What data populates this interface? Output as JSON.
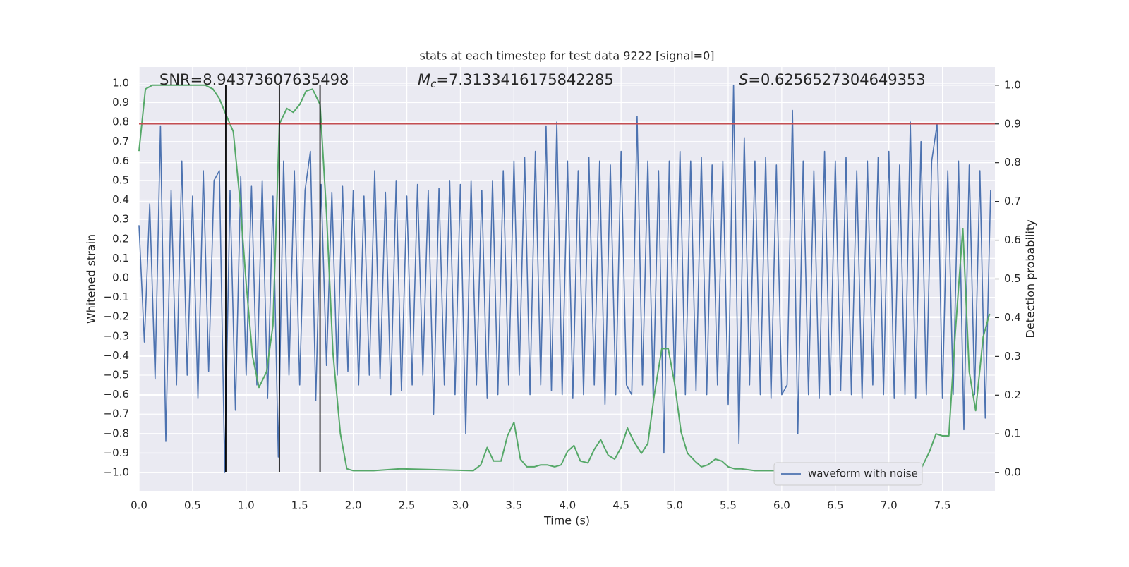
{
  "chart_data": {
    "type": "line",
    "title": "stats at each timestep for test data 9222 [signal=0]",
    "xlabel": "Time (s)",
    "ylabel": "Whitened strain",
    "y2label": "Detection probability",
    "grid": true,
    "legend": "lower right",
    "background": "#eaeaf2",
    "xlim": [
      0,
      7.99
    ],
    "xticks": [
      {
        "value": 0,
        "label": "0.0"
      },
      {
        "value": 0.5,
        "label": "0.5"
      },
      {
        "value": 1,
        "label": "1.0"
      },
      {
        "value": 1.5,
        "label": "1.5"
      },
      {
        "value": 2,
        "label": "2.0"
      },
      {
        "value": 2.5,
        "label": "2.5"
      },
      {
        "value": 3,
        "label": "3.0"
      },
      {
        "value": 3.5,
        "label": "3.5"
      },
      {
        "value": 4,
        "label": "4.0"
      },
      {
        "value": 4.5,
        "label": "4.5"
      },
      {
        "value": 5,
        "label": "5.0"
      },
      {
        "value": 5.5,
        "label": "5.5"
      },
      {
        "value": 6,
        "label": "6.0"
      },
      {
        "value": 6.5,
        "label": "6.5"
      },
      {
        "value": 7,
        "label": "7.0"
      },
      {
        "value": 7.5,
        "label": "7.5"
      }
    ],
    "ylim": [
      -1.094,
      1.083
    ],
    "yticks": [
      {
        "value": -1.0,
        "label": "−1.0"
      },
      {
        "value": -0.9,
        "label": "−0.9"
      },
      {
        "value": -0.8,
        "label": "−0.8"
      },
      {
        "value": -0.7,
        "label": "−0.7"
      },
      {
        "value": -0.6,
        "label": "−0.6"
      },
      {
        "value": -0.5,
        "label": "−0.5"
      },
      {
        "value": -0.4,
        "label": "−0.4"
      },
      {
        "value": -0.3,
        "label": "−0.3"
      },
      {
        "value": -0.2,
        "label": "−0.2"
      },
      {
        "value": -0.1,
        "label": "−0.1"
      },
      {
        "value": 0,
        "label": "0.0"
      },
      {
        "value": 0.1,
        "label": "0.1"
      },
      {
        "value": 0.2,
        "label": "0.2"
      },
      {
        "value": 0.3,
        "label": "0.3"
      },
      {
        "value": 0.4,
        "label": "0.4"
      },
      {
        "value": 0.5,
        "label": "0.5"
      },
      {
        "value": 0.6,
        "label": "0.6"
      },
      {
        "value": 0.7,
        "label": "0.7"
      },
      {
        "value": 0.8,
        "label": "0.8"
      },
      {
        "value": 0.9,
        "label": "0.9"
      },
      {
        "value": 1.0,
        "label": "1.0"
      }
    ],
    "y2lim": [
      -0.047,
      1.047
    ],
    "y2ticks": [
      {
        "value": 0,
        "label": "0.0"
      },
      0.1,
      0.2,
      0.3,
      0.4,
      0.5,
      0.6,
      0.7,
      0.8,
      0.9,
      {
        "value": 1,
        "label": "1.0"
      }
    ],
    "series": [
      {
        "name": "waveform with noise",
        "color": "#4c72b0",
        "x": [
          0,
          0.05,
          0.1,
          0.15,
          0.2,
          0.25,
          0.3,
          0.35,
          0.4,
          0.45,
          0.5,
          0.55,
          0.6,
          0.65,
          0.7,
          0.75,
          0.8,
          0.85,
          0.9,
          0.95,
          1,
          1.05,
          1.1,
          1.15,
          1.2,
          1.25,
          1.3,
          1.35,
          1.4,
          1.45,
          1.5,
          1.55,
          1.6,
          1.65,
          1.7,
          1.75,
          1.8,
          1.85,
          1.9,
          1.95,
          2,
          2.05,
          2.1,
          2.15,
          2.2,
          2.25,
          2.3,
          2.35,
          2.4,
          2.45,
          2.5,
          2.55,
          2.6,
          2.65,
          2.7,
          2.75,
          2.8,
          2.85,
          2.9,
          2.95,
          3,
          3.05,
          3.1,
          3.15,
          3.2,
          3.25,
          3.3,
          3.35,
          3.4,
          3.45,
          3.5,
          3.55,
          3.6,
          3.65,
          3.7,
          3.75,
          3.8,
          3.85,
          3.9,
          3.95,
          4,
          4.05,
          4.1,
          4.15,
          4.2,
          4.25,
          4.3,
          4.35,
          4.4,
          4.45,
          4.5,
          4.55,
          4.6,
          4.65,
          4.7,
          4.75,
          4.8,
          4.85,
          4.9,
          4.95,
          5,
          5.05,
          5.1,
          5.15,
          5.2,
          5.25,
          5.3,
          5.35,
          5.4,
          5.45,
          5.5,
          5.55,
          5.6,
          5.65,
          5.7,
          5.75,
          5.8,
          5.85,
          5.9,
          5.95,
          6,
          6.05,
          6.1,
          6.15,
          6.2,
          6.25,
          6.3,
          6.35,
          6.4,
          6.45,
          6.5,
          6.55,
          6.6,
          6.65,
          6.7,
          6.75,
          6.8,
          6.85,
          6.9,
          6.95,
          7,
          7.05,
          7.1,
          7.15,
          7.2,
          7.25,
          7.3,
          7.35,
          7.4,
          7.45,
          7.5,
          7.55,
          7.6,
          7.65,
          7.7,
          7.75,
          7.8,
          7.85,
          7.9,
          7.95
        ],
        "values": [
          0.27,
          -0.33,
          0.38,
          -0.52,
          0.78,
          -0.84,
          0.45,
          -0.55,
          0.6,
          -0.5,
          0.42,
          -0.62,
          0.55,
          -0.48,
          0.5,
          0.55,
          -1.0,
          0.45,
          -0.68,
          0.52,
          -0.5,
          0.47,
          -0.55,
          0.5,
          -0.62,
          0.42,
          -0.92,
          0.6,
          -0.5,
          0.55,
          -0.55,
          0.45,
          0.65,
          -0.63,
          0.48,
          -0.45,
          0.44,
          -0.5,
          0.47,
          -0.48,
          0.45,
          -0.55,
          0.42,
          -0.5,
          0.55,
          -0.52,
          0.44,
          -0.6,
          0.5,
          -0.58,
          0.42,
          -0.55,
          0.48,
          -0.5,
          0.45,
          -0.7,
          0.46,
          -0.55,
          0.5,
          -0.6,
          0.48,
          -0.8,
          0.5,
          -0.55,
          0.45,
          -0.62,
          0.5,
          -0.6,
          0.55,
          -0.55,
          0.6,
          -0.5,
          0.62,
          -0.6,
          0.65,
          -0.55,
          0.78,
          -0.58,
          0.8,
          -0.6,
          0.6,
          -0.62,
          0.55,
          -0.6,
          0.62,
          -0.55,
          0.6,
          -0.65,
          0.58,
          -0.6,
          0.65,
          -0.55,
          -0.6,
          0.83,
          -0.55,
          0.6,
          -0.62,
          0.55,
          -0.9,
          0.6,
          -0.55,
          0.65,
          -0.6,
          0.6,
          -0.58,
          0.62,
          -0.6,
          0.58,
          -0.55,
          0.6,
          -0.65,
          0.99,
          -0.85,
          0.72,
          -0.55,
          0.6,
          -0.6,
          0.62,
          -0.62,
          0.58,
          -0.6,
          -0.55,
          0.86,
          -0.8,
          0.6,
          -0.6,
          0.55,
          -0.62,
          0.65,
          -0.6,
          0.6,
          -0.58,
          0.62,
          -0.6,
          0.55,
          -0.62,
          0.6,
          -0.55,
          0.62,
          -0.6,
          0.65,
          -0.62,
          0.58,
          -0.6,
          0.8,
          -0.62,
          0.7,
          -0.6,
          0.6,
          0.79,
          -0.62,
          0.55,
          -0.6,
          0.6,
          -0.78,
          0.58,
          -0.6,
          0.55,
          -0.72,
          0.45
        ]
      },
      {
        "color": "#55a868",
        "axis": "y2",
        "x": [
          0,
          0.06,
          0.125,
          0.19,
          0.62,
          0.69,
          0.75,
          0.81,
          0.88,
          0.94,
          1,
          1.06,
          1.12,
          1.19,
          1.25,
          1.31,
          1.38,
          1.44,
          1.5,
          1.56,
          1.62,
          1.69,
          1.75,
          1.81,
          1.88,
          1.94,
          2,
          2.19,
          2.44,
          3.12,
          3.19,
          3.25,
          3.31,
          3.38,
          3.44,
          3.5,
          3.56,
          3.62,
          3.69,
          3.75,
          3.81,
          3.88,
          3.94,
          4,
          4.06,
          4.12,
          4.19,
          4.25,
          4.31,
          4.38,
          4.44,
          4.5,
          4.56,
          4.62,
          4.69,
          4.75,
          4.81,
          4.88,
          4.94,
          5,
          5.06,
          5.12,
          5.19,
          5.25,
          5.31,
          5.38,
          5.44,
          5.5,
          5.56,
          5.62,
          5.75,
          7.25,
          7.31,
          7.38,
          7.44,
          7.5,
          7.56,
          7.62,
          7.69,
          7.75,
          7.81,
          7.88,
          7.94
        ],
        "values": [
          0.83,
          0.99,
          1.0,
          1.0,
          1.0,
          0.99,
          0.965,
          0.925,
          0.88,
          0.71,
          0.49,
          0.3,
          0.22,
          0.26,
          0.38,
          0.9,
          0.94,
          0.93,
          0.95,
          0.985,
          0.99,
          0.95,
          0.67,
          0.31,
          0.1,
          0.01,
          0.005,
          0.005,
          0.01,
          0.005,
          0.02,
          0.065,
          0.03,
          0.03,
          0.095,
          0.13,
          0.035,
          0.015,
          0.015,
          0.02,
          0.02,
          0.015,
          0.02,
          0.055,
          0.07,
          0.03,
          0.025,
          0.06,
          0.085,
          0.045,
          0.035,
          0.065,
          0.115,
          0.08,
          0.05,
          0.075,
          0.2,
          0.32,
          0.32,
          0.23,
          0.105,
          0.05,
          0.03,
          0.015,
          0.02,
          0.035,
          0.03,
          0.015,
          0.01,
          0.01,
          0.005,
          0.005,
          0.015,
          0.055,
          0.1,
          0.095,
          0.095,
          0.36,
          0.63,
          0.26,
          0.16,
          0.35,
          0.41
        ]
      }
    ],
    "hlines": [
      {
        "y": 0.9,
        "axis": "y2",
        "color": "#c44e52"
      }
    ],
    "vlines": {
      "x": [
        0.81,
        1.31,
        1.69
      ],
      "ymin": -1.0,
      "ymax": 0.99,
      "color": "#000000"
    },
    "annotations": [
      {
        "text": "SNR=8.94373607635498"
      },
      {
        "symbol": "M",
        "subscript": "c",
        "text": "=7.3133416175842285"
      },
      {
        "symbol": "S",
        "text": "=0.6256527304649353"
      }
    ]
  }
}
